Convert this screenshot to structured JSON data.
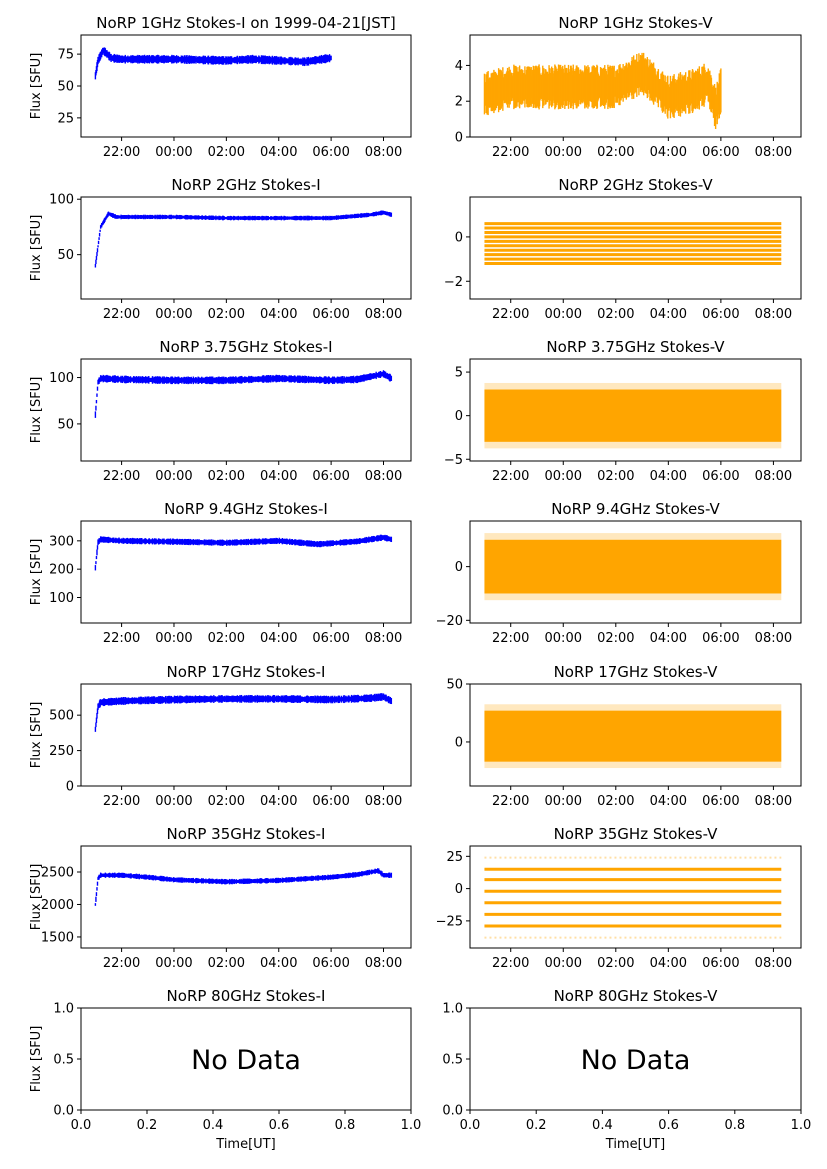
{
  "figure": {
    "background": "#ffffff",
    "colors": {
      "stokes_i": "#0000ff",
      "stokes_v": "#ffa500"
    }
  },
  "chart_data": [
    {
      "type": "scatter",
      "title": "NoRP 1GHz Stokes-I on 1999-04-21[JST]",
      "ylabel": "Flux [SFU]",
      "xlabel": "",
      "color": "#0000ff",
      "xlim_hours": [
        20.45,
        33.05
      ],
      "ylim": [
        10,
        90
      ],
      "yticks": [
        25,
        50,
        75
      ],
      "xticks": [
        "22:00",
        "00:00",
        "02:00",
        "04:00",
        "06:00",
        "08:00"
      ],
      "series": [
        {
          "name": "Stokes-I",
          "x_hours": [
            21.0,
            21.1,
            21.3,
            21.6,
            22.0,
            24.0,
            26.0,
            27.0,
            28.0,
            29.0,
            30.0
          ],
          "y": [
            58,
            70,
            78,
            72,
            71,
            71,
            70,
            71,
            70,
            69,
            72
          ],
          "spread": 2.5
        }
      ]
    },
    {
      "type": "scatter",
      "title": "NoRP 1GHz Stokes-V",
      "ylabel": "",
      "xlabel": "",
      "color": "#ffa500",
      "xlim_hours": [
        20.45,
        33.05
      ],
      "ylim": [
        0,
        5.7
      ],
      "yticks": [
        0,
        2,
        4
      ],
      "xticks": [
        "22:00",
        "00:00",
        "02:00",
        "04:00",
        "06:00",
        "08:00"
      ],
      "series": [
        {
          "name": "Stokes-V",
          "x_hours": [
            21.0,
            22.0,
            24.0,
            26.0,
            27.0,
            28.0,
            29.0,
            29.5,
            29.8,
            30.0
          ],
          "y": [
            2.4,
            2.8,
            2.8,
            2.8,
            3.6,
            2.2,
            2.6,
            3.0,
            1.6,
            2.6
          ],
          "spread": 0.9
        }
      ]
    },
    {
      "type": "scatter",
      "title": "NoRP 2GHz Stokes-I",
      "ylabel": "Flux [SFU]",
      "xlabel": "",
      "color": "#0000ff",
      "xlim_hours": [
        20.45,
        33.05
      ],
      "ylim": [
        10,
        102
      ],
      "yticks": [
        50,
        100
      ],
      "xticks": [
        "22:00",
        "00:00",
        "02:00",
        "04:00",
        "06:00",
        "08:00"
      ],
      "series": [
        {
          "name": "Stokes-I",
          "x_hours": [
            21.0,
            21.2,
            21.5,
            21.8,
            22.0,
            24.0,
            26.0,
            28.0,
            30.0,
            31.5,
            32.0,
            32.3
          ],
          "y": [
            40,
            75,
            87,
            84,
            84,
            84,
            83,
            83,
            83,
            86,
            88,
            86
          ],
          "spread": 1.5
        }
      ]
    },
    {
      "type": "scatter",
      "title": "NoRP 2GHz Stokes-V",
      "ylabel": "",
      "xlabel": "",
      "color": "#ffa500",
      "xlim_hours": [
        20.45,
        33.05
      ],
      "ylim": [
        -2.8,
        1.8
      ],
      "yticks": [
        -2,
        0
      ],
      "xticks": [
        "22:00",
        "00:00",
        "02:00",
        "04:00",
        "06:00",
        "08:00"
      ],
      "series": [
        {
          "name": "Stokes-V",
          "levels": [
            0.6,
            0.4,
            0.2,
            0.0,
            -0.2,
            -0.4,
            -0.6,
            -0.8,
            -1.0,
            -1.2
          ],
          "x_range_hours": [
            21.0,
            32.3
          ]
        }
      ]
    },
    {
      "type": "scatter",
      "title": "NoRP 3.75GHz Stokes-I",
      "ylabel": "Flux [SFU]",
      "xlabel": "",
      "color": "#0000ff",
      "xlim_hours": [
        20.45,
        33.05
      ],
      "ylim": [
        10,
        120
      ],
      "yticks": [
        50,
        100
      ],
      "xticks": [
        "22:00",
        "00:00",
        "02:00",
        "04:00",
        "06:00",
        "08:00"
      ],
      "series": [
        {
          "name": "Stokes-I",
          "x_hours": [
            21.0,
            21.1,
            21.2,
            22.0,
            24.0,
            26.0,
            28.0,
            30.0,
            31.0,
            32.0,
            32.3
          ],
          "y": [
            60,
            95,
            99,
            98,
            97,
            97,
            99,
            97,
            98,
            104,
            99
          ],
          "spread": 3
        }
      ]
    },
    {
      "type": "scatter",
      "title": "NoRP 3.75GHz Stokes-V",
      "ylabel": "",
      "xlabel": "",
      "color": "#ffa500",
      "xlim_hours": [
        20.45,
        33.05
      ],
      "ylim": [
        -5.2,
        6.5
      ],
      "yticks": [
        -5,
        0,
        5
      ],
      "xticks": [
        "22:00",
        "00:00",
        "02:00",
        "04:00",
        "06:00",
        "08:00"
      ],
      "series": [
        {
          "name": "Stokes-V",
          "center": 0.0,
          "half_width": 3.0,
          "x_range_hours": [
            21.0,
            32.3
          ]
        }
      ]
    },
    {
      "type": "scatter",
      "title": "NoRP 9.4GHz Stokes-I",
      "ylabel": "Flux [SFU]",
      "xlabel": "",
      "color": "#0000ff",
      "xlim_hours": [
        20.45,
        33.05
      ],
      "ylim": [
        10,
        370
      ],
      "yticks": [
        100,
        200,
        300
      ],
      "xticks": [
        "22:00",
        "00:00",
        "02:00",
        "04:00",
        "06:00",
        "08:00"
      ],
      "series": [
        {
          "name": "Stokes-I",
          "x_hours": [
            21.0,
            21.1,
            21.2,
            22.0,
            24.0,
            26.0,
            28.0,
            29.5,
            31.0,
            32.0,
            32.3
          ],
          "y": [
            205,
            295,
            305,
            300,
            297,
            293,
            300,
            288,
            298,
            312,
            305
          ],
          "spread": 8
        }
      ]
    },
    {
      "type": "scatter",
      "title": "NoRP 9.4GHz Stokes-V",
      "ylabel": "",
      "xlabel": "",
      "color": "#ffa500",
      "xlim_hours": [
        20.45,
        33.05
      ],
      "ylim": [
        -21,
        17
      ],
      "yticks": [
        -20,
        0
      ],
      "xticks": [
        "22:00",
        "00:00",
        "02:00",
        "04:00",
        "06:00",
        "08:00"
      ],
      "series": [
        {
          "name": "Stokes-V",
          "center": 0.0,
          "half_width": 10.0,
          "x_range_hours": [
            21.0,
            32.3
          ]
        }
      ]
    },
    {
      "type": "scatter",
      "title": "NoRP 17GHz Stokes-I",
      "ylabel": "Flux [SFU]",
      "xlabel": "",
      "color": "#0000ff",
      "xlim_hours": [
        20.45,
        33.05
      ],
      "ylim": [
        0,
        720
      ],
      "yticks": [
        0,
        250,
        500
      ],
      "xticks": [
        "22:00",
        "00:00",
        "02:00",
        "04:00",
        "06:00",
        "08:00"
      ],
      "series": [
        {
          "name": "Stokes-I",
          "x_hours": [
            21.0,
            21.1,
            21.2,
            22.0,
            24.0,
            26.0,
            28.0,
            30.0,
            31.5,
            32.0,
            32.3
          ],
          "y": [
            400,
            560,
            590,
            600,
            610,
            615,
            615,
            610,
            620,
            630,
            600
          ],
          "spread": 20
        }
      ]
    },
    {
      "type": "scatter",
      "title": "NoRP 17GHz Stokes-V",
      "ylabel": "",
      "xlabel": "",
      "color": "#ffa500",
      "xlim_hours": [
        20.45,
        33.05
      ],
      "ylim": [
        -38,
        50
      ],
      "yticks": [
        0,
        50
      ],
      "xticks": [
        "22:00",
        "00:00",
        "02:00",
        "04:00",
        "06:00",
        "08:00"
      ],
      "series": [
        {
          "name": "Stokes-V",
          "center": 5.0,
          "half_width": 22.0,
          "x_range_hours": [
            21.0,
            32.3
          ]
        }
      ]
    },
    {
      "type": "scatter",
      "title": "NoRP 35GHz Stokes-I",
      "ylabel": "Flux [SFU]",
      "xlabel": "",
      "color": "#0000ff",
      "xlim_hours": [
        20.45,
        33.05
      ],
      "ylim": [
        1330,
        2900
      ],
      "yticks": [
        1500,
        2000,
        2500
      ],
      "xticks": [
        "22:00",
        "00:00",
        "02:00",
        "04:00",
        "06:00",
        "08:00"
      ],
      "series": [
        {
          "name": "Stokes-I",
          "x_hours": [
            21.0,
            21.1,
            21.2,
            22.0,
            23.0,
            24.0,
            26.0,
            28.0,
            30.0,
            31.0,
            31.8,
            32.0,
            32.3
          ],
          "y": [
            2000,
            2400,
            2450,
            2450,
            2420,
            2380,
            2350,
            2370,
            2420,
            2460,
            2520,
            2450,
            2450
          ],
          "spread": 30
        }
      ]
    },
    {
      "type": "scatter",
      "title": "NoRP 35GHz Stokes-V",
      "ylabel": "",
      "xlabel": "",
      "color": "#ffa500",
      "xlim_hours": [
        20.45,
        33.05
      ],
      "ylim": [
        -46,
        33
      ],
      "yticks": [
        -25,
        0,
        25
      ],
      "xticks": [
        "22:00",
        "00:00",
        "02:00",
        "04:00",
        "06:00",
        "08:00"
      ],
      "series": [
        {
          "name": "Stokes-V",
          "levels": [
            15,
            7,
            -2,
            -11,
            -20,
            -29
          ],
          "sparse_levels": [
            24,
            -38
          ],
          "x_range_hours": [
            21.0,
            32.3
          ]
        }
      ]
    },
    {
      "type": "scatter",
      "title": "NoRP 80GHz Stokes-I",
      "ylabel": "Flux [SFU]",
      "xlabel": "Time[UT]",
      "color": "#0000ff",
      "xlim": [
        0,
        1
      ],
      "ylim": [
        0,
        1
      ],
      "yticks": [
        "0.0",
        "0.5",
        "1.0"
      ],
      "xticks": [
        "0.0",
        "0.2",
        "0.4",
        "0.6",
        "0.8",
        "1.0"
      ],
      "annotation": "No Data",
      "series": []
    },
    {
      "type": "scatter",
      "title": "NoRP 80GHz Stokes-V",
      "ylabel": "",
      "xlabel": "Time[UT]",
      "color": "#ffa500",
      "xlim": [
        0,
        1
      ],
      "ylim": [
        0,
        1
      ],
      "yticks": [
        "0.0",
        "0.5",
        "1.0"
      ],
      "xticks": [
        "0.0",
        "0.2",
        "0.4",
        "0.6",
        "0.8",
        "1.0"
      ],
      "annotation": "No Data",
      "series": []
    }
  ]
}
